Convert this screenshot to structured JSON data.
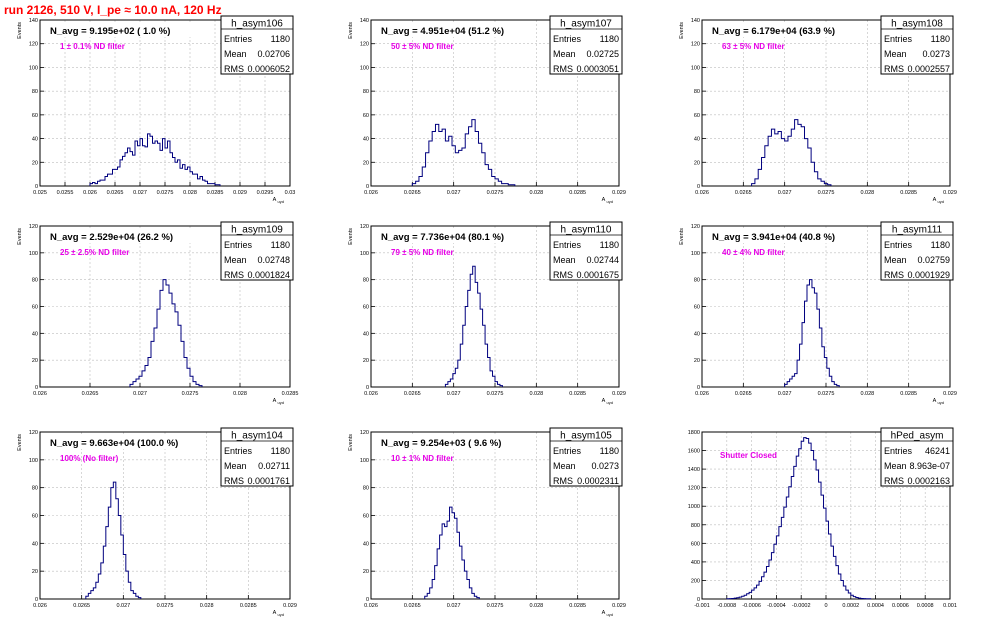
{
  "page": {
    "run_title": "run 2126,   510 V, I_pe ≈ 10.0 nA, 120 Hz"
  },
  "colors": {
    "hist": "#00007f",
    "annotation": "#e600e6",
    "title": "#ff0000",
    "grid": "#bdbdbd"
  },
  "chart_data": [
    {
      "type": "bar",
      "name": "h_asym106",
      "stats": {
        "entries_label": "Entries",
        "entries": "1180",
        "mean_label": "Mean",
        "mean": "0.02706",
        "rms_label": "RMS",
        "rms": "0.0006052"
      },
      "title": "N_avg = 9.195e+02 ( 1.0 %)",
      "annotation": "1 ± 0.1% ND filter",
      "ylabel": "Events",
      "xlabel": "A_uyd",
      "xlim": [
        0.025,
        0.03
      ],
      "ylim": [
        0,
        140
      ],
      "xticks": [
        "0.025",
        "0.0255",
        "0.026",
        "0.0265",
        "0.027",
        "0.0275",
        "0.028",
        "0.0285",
        "0.029",
        "0.0295",
        "0.03"
      ],
      "yticks": [
        "0",
        "20",
        "40",
        "60",
        "80",
        "100",
        "120",
        "140"
      ],
      "grid": true,
      "bins": {
        "x_start": 0.026,
        "width": 5e-05,
        "values": [
          2,
          3,
          2,
          4,
          5,
          5,
          8,
          10,
          10,
          14,
          14,
          16,
          22,
          25,
          28,
          32,
          29,
          26,
          38,
          34,
          40,
          34,
          33,
          44,
          42,
          36,
          38,
          36,
          30,
          40,
          32,
          38,
          28,
          24,
          20,
          22,
          15,
          18,
          14,
          16,
          12,
          10,
          10,
          6,
          8,
          5,
          4,
          2,
          2,
          2,
          1,
          1
        ]
      }
    },
    {
      "type": "bar",
      "name": "h_asym107",
      "stats": {
        "entries_label": "Entries",
        "entries": "1180",
        "mean_label": "Mean",
        "mean": "0.02725",
        "rms_label": "RMS",
        "rms": "0.0003051"
      },
      "title": "N_avg = 4.951e+04 (51.2 %)",
      "annotation": "50 ± 5% ND filter",
      "ylabel": "Events",
      "xlabel": "A_uyd",
      "xlim": [
        0.026,
        0.029
      ],
      "ylim": [
        0,
        140
      ],
      "xticks": [
        "0.026",
        "0.0265",
        "0.027",
        "0.0275",
        "0.028",
        "0.0285",
        "0.029"
      ],
      "yticks": [
        "0",
        "20",
        "40",
        "60",
        "80",
        "100",
        "120",
        "140"
      ],
      "grid": true,
      "bins": {
        "x_start": 0.0265,
        "width": 4e-05,
        "values": [
          2,
          4,
          8,
          16,
          28,
          38,
          46,
          52,
          46,
          48,
          38,
          42,
          34,
          28,
          30,
          32,
          44,
          50,
          56,
          46,
          36,
          28,
          18,
          14,
          8,
          6,
          4,
          2,
          2,
          1,
          1
        ]
      }
    },
    {
      "type": "bar",
      "name": "h_asym108",
      "stats": {
        "entries_label": "Entries",
        "entries": "1180",
        "mean_label": "Mean",
        "mean": "0.0273",
        "rms_label": "RMS",
        "rms": "0.0002557"
      },
      "title": "N_avg = 6.179e+04 (63.9 %)",
      "annotation": "63 ± 5% ND filter",
      "ylabel": "Events",
      "xlabel": "A_uyd",
      "xlim": [
        0.026,
        0.029
      ],
      "ylim": [
        0,
        140
      ],
      "xticks": [
        "0.026",
        "0.0265",
        "0.027",
        "0.0275",
        "0.028",
        "0.0285",
        "0.029"
      ],
      "yticks": [
        "0",
        "20",
        "40",
        "60",
        "80",
        "100",
        "120",
        "140"
      ],
      "grid": true,
      "bins": {
        "x_start": 0.0266,
        "width": 4e-05,
        "values": [
          2,
          6,
          14,
          24,
          34,
          42,
          48,
          44,
          46,
          40,
          38,
          42,
          48,
          56,
          52,
          50,
          40,
          32,
          20,
          12,
          6,
          4,
          2,
          1
        ]
      }
    },
    {
      "type": "bar",
      "name": "h_asym109",
      "stats": {
        "entries_label": "Entries",
        "entries": "1180",
        "mean_label": "Mean",
        "mean": "0.02748",
        "rms_label": "RMS",
        "rms": "0.0001824"
      },
      "title": "N_avg = 2.529e+04 (26.2 %)",
      "annotation": "25 ± 2.5% ND filter",
      "ylabel": "Events",
      "xlabel": "A_uyd",
      "xlim": [
        0.026,
        0.0285
      ],
      "ylim": [
        0,
        120
      ],
      "xticks": [
        "0.026",
        "0.0265",
        "0.027",
        "0.0275",
        "0.028",
        "0.0285"
      ],
      "yticks": [
        "0",
        "20",
        "40",
        "60",
        "80",
        "100",
        "120"
      ],
      "grid": true,
      "bins": {
        "x_start": 0.0269,
        "width": 3e-05,
        "values": [
          2,
          4,
          6,
          8,
          12,
          16,
          22,
          34,
          44,
          58,
          72,
          80,
          76,
          70,
          62,
          56,
          46,
          34,
          22,
          14,
          8,
          4,
          2,
          1
        ]
      }
    },
    {
      "type": "bar",
      "name": "h_asym110",
      "stats": {
        "entries_label": "Entries",
        "entries": "1180",
        "mean_label": "Mean",
        "mean": "0.02744",
        "rms_label": "RMS",
        "rms": "0.0001675"
      },
      "title": "N_avg = 7.736e+04 (80.1 %)",
      "annotation": "79 ± 5% ND filter",
      "ylabel": "Events",
      "xlabel": "A_uyd",
      "xlim": [
        0.026,
        0.029
      ],
      "ylim": [
        0,
        120
      ],
      "xticks": [
        "0.026",
        "0.0265",
        "0.027",
        "0.0275",
        "0.028",
        "0.0285",
        "0.029"
      ],
      "yticks": [
        "0",
        "20",
        "40",
        "60",
        "80",
        "100",
        "120"
      ],
      "grid": true,
      "bins": {
        "x_start": 0.0269,
        "width": 3e-05,
        "values": [
          2,
          4,
          6,
          10,
          14,
          20,
          32,
          46,
          60,
          72,
          84,
          90,
          78,
          70,
          58,
          46,
          32,
          22,
          12,
          8,
          4,
          2,
          1
        ]
      }
    },
    {
      "type": "bar",
      "name": "h_asym111",
      "stats": {
        "entries_label": "Entries",
        "entries": "1180",
        "mean_label": "Mean",
        "mean": "0.02759",
        "rms_label": "RMS",
        "rms": "0.0001929"
      },
      "title": "N_avg = 3.941e+04 (40.8 %)",
      "annotation": "40 ± 4% ND filter",
      "ylabel": "Events",
      "xlabel": "A_uyd",
      "xlim": [
        0.026,
        0.029
      ],
      "ylim": [
        0,
        120
      ],
      "xticks": [
        "0.026",
        "0.0265",
        "0.027",
        "0.0275",
        "0.028",
        "0.0285",
        "0.029"
      ],
      "yticks": [
        "0",
        "20",
        "40",
        "60",
        "80",
        "100",
        "120"
      ],
      "grid": true,
      "bins": {
        "x_start": 0.027,
        "width": 3e-05,
        "values": [
          2,
          4,
          6,
          8,
          10,
          20,
          32,
          48,
          64,
          76,
          80,
          74,
          70,
          58,
          44,
          30,
          22,
          14,
          8,
          4,
          2,
          1
        ]
      }
    },
    {
      "type": "bar",
      "name": "h_asym104",
      "stats": {
        "entries_label": "Entries",
        "entries": "1180",
        "mean_label": "Mean",
        "mean": "0.02711",
        "rms_label": "RMS",
        "rms": "0.0001761"
      },
      "title": "N_avg = 9.663e+04 (100.0 %)",
      "annotation": "100% (No filter)",
      "ylabel": "Events",
      "xlabel": "A_uyd",
      "xlim": [
        0.026,
        0.029
      ],
      "ylim": [
        0,
        120
      ],
      "xticks": [
        "0.026",
        "0.0265",
        "0.027",
        "0.0275",
        "0.028",
        "0.0285",
        "0.029"
      ],
      "yticks": [
        "0",
        "20",
        "40",
        "60",
        "80",
        "100",
        "120"
      ],
      "grid": true,
      "bins": {
        "x_start": 0.02655,
        "width": 3e-05,
        "values": [
          2,
          4,
          6,
          8,
          12,
          18,
          26,
          38,
          52,
          66,
          80,
          84,
          72,
          60,
          46,
          32,
          20,
          12,
          6,
          4,
          2,
          1
        ]
      }
    },
    {
      "type": "bar",
      "name": "h_asym105",
      "stats": {
        "entries_label": "Entries",
        "entries": "1180",
        "mean_label": "Mean",
        "mean": "0.0273",
        "rms_label": "RMS",
        "rms": "0.0002311"
      },
      "title": "N_avg = 9.254e+03 ( 9.6 %)",
      "annotation": "10 ± 1% ND filter",
      "ylabel": "Events",
      "xlabel": "A_uyd",
      "xlim": [
        0.026,
        0.029
      ],
      "ylim": [
        0,
        120
      ],
      "xticks": [
        "0.026",
        "0.0265",
        "0.027",
        "0.0275",
        "0.028",
        "0.0285",
        "0.029"
      ],
      "yticks": [
        "0",
        "20",
        "40",
        "60",
        "80",
        "100",
        "120"
      ],
      "grid": true,
      "bins": {
        "x_start": 0.02665,
        "width": 3e-05,
        "values": [
          2,
          4,
          8,
          14,
          24,
          36,
          46,
          54,
          52,
          56,
          66,
          62,
          58,
          48,
          38,
          28,
          20,
          14,
          8,
          4,
          2,
          1
        ]
      }
    },
    {
      "type": "bar",
      "name": "hPed_asym",
      "stats": {
        "entries_label": "Entries",
        "entries": "46241",
        "mean_label": "Mean",
        "mean": "8.963e-07",
        "rms_label": "RMS",
        "rms": "0.0002163"
      },
      "title": "",
      "annotation": "Shutter Closed",
      "ylabel": "",
      "xlabel": "",
      "xlim": [
        -0.001,
        0.001
      ],
      "ylim": [
        0,
        1800
      ],
      "xticks": [
        "-0.001",
        "-0.0008",
        "-0.0006",
        "-0.0004",
        "-0.0002",
        "0",
        "0.0002",
        "0.0004",
        "0.0006",
        "0.0008",
        "0.001"
      ],
      "yticks": [
        "0",
        "200",
        "400",
        "600",
        "800",
        "1000",
        "1200",
        "1400",
        "1600",
        "1800"
      ],
      "grid": true,
      "bins": {
        "x_start": -0.0008,
        "width": 2e-05,
        "values": [
          2,
          4,
          6,
          10,
          14,
          20,
          30,
          40,
          56,
          72,
          96,
          120,
          150,
          190,
          240,
          290,
          350,
          420,
          500,
          590,
          680,
          780,
          880,
          990,
          1100,
          1210,
          1320,
          1430,
          1540,
          1620,
          1700,
          1740,
          1730,
          1680,
          1600,
          1500,
          1390,
          1260,
          1120,
          980,
          840,
          700,
          570,
          460,
          360,
          270,
          200,
          140,
          96,
          64,
          40,
          26,
          16,
          10,
          6,
          4,
          2,
          2
        ]
      }
    }
  ]
}
